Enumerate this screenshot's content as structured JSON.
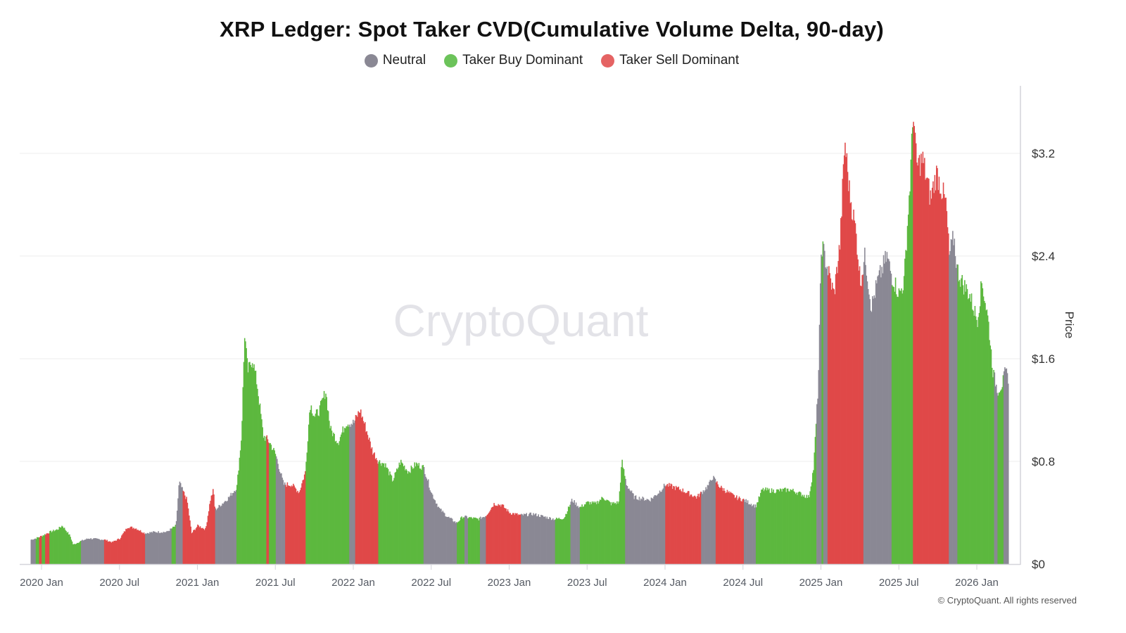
{
  "chart_data": {
    "type": "bar",
    "title": "XRP Ledger: Spot Taker CVD(Cumulative Volume Delta, 90-day)",
    "watermark": "CryptoQuant",
    "copyright": "© CryptoQuant. All rights reserved",
    "xlabel": "",
    "ylabel": "Price",
    "ylim": [
      0,
      3.6
    ],
    "y_ticks": [
      {
        "value": 0,
        "label": "$0"
      },
      {
        "value": 0.8,
        "label": "$0.8"
      },
      {
        "value": 1.6,
        "label": "$1.6"
      },
      {
        "value": 2.4,
        "label": "$2.4"
      },
      {
        "value": 3.2,
        "label": "$3.2"
      }
    ],
    "x_ticks": [
      {
        "t": 2020.0,
        "label": "2020 Jan"
      },
      {
        "t": 2020.5,
        "label": "2020 Jul"
      },
      {
        "t": 2021.0,
        "label": "2021 Jan"
      },
      {
        "t": 2021.5,
        "label": "2021 Jul"
      },
      {
        "t": 2022.0,
        "label": "2022 Jan"
      },
      {
        "t": 2022.5,
        "label": "2022 Jul"
      },
      {
        "t": 2023.0,
        "label": "2023 Jan"
      },
      {
        "t": 2023.5,
        "label": "2023 Jul"
      },
      {
        "t": 2024.0,
        "label": "2024 Jan"
      },
      {
        "t": 2024.5,
        "label": "2024 Jul"
      },
      {
        "t": 2025.0,
        "label": "2025 Jan"
      },
      {
        "t": 2025.5,
        "label": "2025 Jul"
      },
      {
        "t": 2026.0,
        "label": "2026 Jan"
      }
    ],
    "xlim": [
      2019.93,
      2026.23
    ],
    "grid": true,
    "legend_position": "top-center",
    "categories": [
      {
        "key": "neutral",
        "name": "Neutral",
        "color": "#8a8894"
      },
      {
        "key": "buy",
        "name": "Taker Buy Dominant",
        "color": "#5cb83e"
      },
      {
        "key": "sell",
        "name": "Taker Sell Dominant",
        "color": "#e04848"
      }
    ],
    "segments": [
      {
        "start": 2019.93,
        "end": 2019.96,
        "category": "neutral"
      },
      {
        "start": 2019.96,
        "end": 2019.98,
        "category": "buy"
      },
      {
        "start": 2019.98,
        "end": 2020.0,
        "category": "sell"
      },
      {
        "start": 2020.0,
        "end": 2020.02,
        "category": "buy"
      },
      {
        "start": 2020.02,
        "end": 2020.05,
        "category": "sell"
      },
      {
        "start": 2020.05,
        "end": 2020.25,
        "category": "buy"
      },
      {
        "start": 2020.25,
        "end": 2020.4,
        "category": "neutral"
      },
      {
        "start": 2020.4,
        "end": 2020.66,
        "category": "sell"
      },
      {
        "start": 2020.66,
        "end": 2020.83,
        "category": "neutral"
      },
      {
        "start": 2020.83,
        "end": 2020.86,
        "category": "buy"
      },
      {
        "start": 2020.86,
        "end": 2020.9,
        "category": "neutral"
      },
      {
        "start": 2020.9,
        "end": 2021.11,
        "category": "sell"
      },
      {
        "start": 2021.11,
        "end": 2021.25,
        "category": "neutral"
      },
      {
        "start": 2021.25,
        "end": 2021.44,
        "category": "buy"
      },
      {
        "start": 2021.44,
        "end": 2021.455,
        "category": "sell"
      },
      {
        "start": 2021.455,
        "end": 2021.5,
        "category": "buy"
      },
      {
        "start": 2021.5,
        "end": 2021.56,
        "category": "neutral"
      },
      {
        "start": 2021.56,
        "end": 2021.69,
        "category": "sell"
      },
      {
        "start": 2021.69,
        "end": 2021.97,
        "category": "buy"
      },
      {
        "start": 2021.97,
        "end": 2022.01,
        "category": "neutral"
      },
      {
        "start": 2022.01,
        "end": 2022.16,
        "category": "sell"
      },
      {
        "start": 2022.16,
        "end": 2022.45,
        "category": "buy"
      },
      {
        "start": 2022.45,
        "end": 2022.66,
        "category": "neutral"
      },
      {
        "start": 2022.66,
        "end": 2022.71,
        "category": "buy"
      },
      {
        "start": 2022.71,
        "end": 2022.73,
        "category": "neutral"
      },
      {
        "start": 2022.73,
        "end": 2022.81,
        "category": "buy"
      },
      {
        "start": 2022.81,
        "end": 2022.85,
        "category": "neutral"
      },
      {
        "start": 2022.85,
        "end": 2023.07,
        "category": "sell"
      },
      {
        "start": 2023.07,
        "end": 2023.29,
        "category": "neutral"
      },
      {
        "start": 2023.29,
        "end": 2023.39,
        "category": "buy"
      },
      {
        "start": 2023.39,
        "end": 2023.45,
        "category": "neutral"
      },
      {
        "start": 2023.45,
        "end": 2023.74,
        "category": "buy"
      },
      {
        "start": 2023.74,
        "end": 2024.0,
        "category": "neutral"
      },
      {
        "start": 2024.0,
        "end": 2024.23,
        "category": "sell"
      },
      {
        "start": 2024.23,
        "end": 2024.32,
        "category": "neutral"
      },
      {
        "start": 2024.32,
        "end": 2024.5,
        "category": "sell"
      },
      {
        "start": 2024.5,
        "end": 2024.58,
        "category": "neutral"
      },
      {
        "start": 2024.58,
        "end": 2024.97,
        "category": "buy"
      },
      {
        "start": 2024.97,
        "end": 2025.0,
        "category": "neutral"
      },
      {
        "start": 2025.0,
        "end": 2025.01,
        "category": "buy"
      },
      {
        "start": 2025.01,
        "end": 2025.04,
        "category": "neutral"
      },
      {
        "start": 2025.04,
        "end": 2025.27,
        "category": "sell"
      },
      {
        "start": 2025.27,
        "end": 2025.45,
        "category": "neutral"
      },
      {
        "start": 2025.45,
        "end": 2025.59,
        "category": "buy"
      },
      {
        "start": 2025.59,
        "end": 2025.82,
        "category": "sell"
      },
      {
        "start": 2025.82,
        "end": 2025.87,
        "category": "neutral"
      },
      {
        "start": 2025.87,
        "end": 2026.11,
        "category": "buy"
      },
      {
        "start": 2026.11,
        "end": 2026.13,
        "category": "neutral"
      },
      {
        "start": 2026.13,
        "end": 2026.17,
        "category": "buy"
      },
      {
        "start": 2026.17,
        "end": 2026.2,
        "category": "neutral"
      }
    ],
    "price_points": [
      [
        2019.93,
        0.19
      ],
      [
        2019.96,
        0.2
      ],
      [
        2020.0,
        0.22
      ],
      [
        2020.05,
        0.25
      ],
      [
        2020.1,
        0.27
      ],
      [
        2020.13,
        0.3
      ],
      [
        2020.18,
        0.22
      ],
      [
        2020.2,
        0.15
      ],
      [
        2020.25,
        0.18
      ],
      [
        2020.3,
        0.2
      ],
      [
        2020.4,
        0.19
      ],
      [
        2020.45,
        0.17
      ],
      [
        2020.5,
        0.2
      ],
      [
        2020.55,
        0.29
      ],
      [
        2020.6,
        0.28
      ],
      [
        2020.66,
        0.24
      ],
      [
        2020.72,
        0.25
      ],
      [
        2020.8,
        0.25
      ],
      [
        2020.86,
        0.3
      ],
      [
        2020.88,
        0.64
      ],
      [
        2020.9,
        0.58
      ],
      [
        2020.93,
        0.5
      ],
      [
        2020.96,
        0.24
      ],
      [
        2021.0,
        0.3
      ],
      [
        2021.05,
        0.27
      ],
      [
        2021.08,
        0.5
      ],
      [
        2021.1,
        0.58
      ],
      [
        2021.11,
        0.42
      ],
      [
        2021.2,
        0.52
      ],
      [
        2021.25,
        0.6
      ],
      [
        2021.28,
        1.0
      ],
      [
        2021.3,
        1.8
      ],
      [
        2021.32,
        1.5
      ],
      [
        2021.35,
        1.6
      ],
      [
        2021.38,
        1.4
      ],
      [
        2021.42,
        1.0
      ],
      [
        2021.46,
        0.95
      ],
      [
        2021.5,
        0.85
      ],
      [
        2021.55,
        0.62
      ],
      [
        2021.6,
        0.62
      ],
      [
        2021.65,
        0.56
      ],
      [
        2021.69,
        0.72
      ],
      [
        2021.72,
        1.25
      ],
      [
        2021.75,
        1.15
      ],
      [
        2021.78,
        1.2
      ],
      [
        2021.82,
        1.35
      ],
      [
        2021.85,
        1.05
      ],
      [
        2021.9,
        0.95
      ],
      [
        2021.95,
        1.1
      ],
      [
        2022.0,
        1.1
      ],
      [
        2022.04,
        1.2
      ],
      [
        2022.08,
        1.05
      ],
      [
        2022.12,
        0.88
      ],
      [
        2022.16,
        0.8
      ],
      [
        2022.2,
        0.78
      ],
      [
        2022.25,
        0.65
      ],
      [
        2022.3,
        0.8
      ],
      [
        2022.35,
        0.72
      ],
      [
        2022.4,
        0.78
      ],
      [
        2022.45,
        0.75
      ],
      [
        2022.5,
        0.55
      ],
      [
        2022.55,
        0.43
      ],
      [
        2022.6,
        0.37
      ],
      [
        2022.66,
        0.32
      ],
      [
        2022.7,
        0.37
      ],
      [
        2022.8,
        0.35
      ],
      [
        2022.85,
        0.38
      ],
      [
        2022.9,
        0.47
      ],
      [
        2022.95,
        0.46
      ],
      [
        2023.0,
        0.4
      ],
      [
        2023.07,
        0.38
      ],
      [
        2023.15,
        0.39
      ],
      [
        2023.25,
        0.36
      ],
      [
        2023.29,
        0.35
      ],
      [
        2023.35,
        0.36
      ],
      [
        2023.4,
        0.5
      ],
      [
        2023.45,
        0.44
      ],
      [
        2023.5,
        0.48
      ],
      [
        2023.55,
        0.47
      ],
      [
        2023.6,
        0.52
      ],
      [
        2023.65,
        0.47
      ],
      [
        2023.7,
        0.48
      ],
      [
        2023.72,
        0.8
      ],
      [
        2023.75,
        0.62
      ],
      [
        2023.8,
        0.52
      ],
      [
        2023.9,
        0.5
      ],
      [
        2023.95,
        0.55
      ],
      [
        2024.0,
        0.62
      ],
      [
        2024.05,
        0.6
      ],
      [
        2024.1,
        0.58
      ],
      [
        2024.2,
        0.52
      ],
      [
        2024.25,
        0.58
      ],
      [
        2024.28,
        0.62
      ],
      [
        2024.3,
        0.68
      ],
      [
        2024.35,
        0.6
      ],
      [
        2024.45,
        0.52
      ],
      [
        2024.5,
        0.5
      ],
      [
        2024.58,
        0.45
      ],
      [
        2024.62,
        0.58
      ],
      [
        2024.7,
        0.57
      ],
      [
        2024.8,
        0.58
      ],
      [
        2024.88,
        0.54
      ],
      [
        2024.92,
        0.52
      ],
      [
        2024.95,
        0.75
      ],
      [
        2024.98,
        1.4
      ],
      [
        2025.0,
        2.5
      ],
      [
        2025.04,
        2.3
      ],
      [
        2025.08,
        2.1
      ],
      [
        2025.12,
        2.5
      ],
      [
        2025.15,
        3.3
      ],
      [
        2025.18,
        2.9
      ],
      [
        2025.22,
        2.6
      ],
      [
        2025.25,
        2.2
      ],
      [
        2025.28,
        2.4
      ],
      [
        2025.32,
        2.0
      ],
      [
        2025.36,
        2.2
      ],
      [
        2025.42,
        2.4
      ],
      [
        2025.45,
        2.25
      ],
      [
        2025.5,
        2.1
      ],
      [
        2025.53,
        2.2
      ],
      [
        2025.57,
        3.0
      ],
      [
        2025.59,
        3.55
      ],
      [
        2025.61,
        3.1
      ],
      [
        2025.65,
        3.15
      ],
      [
        2025.7,
        2.85
      ],
      [
        2025.74,
        3.05
      ],
      [
        2025.8,
        2.8
      ],
      [
        2025.82,
        2.4
      ],
      [
        2025.85,
        2.55
      ],
      [
        2025.87,
        2.3
      ],
      [
        2025.9,
        2.2
      ],
      [
        2025.95,
        2.1
      ],
      [
        2026.0,
        1.9
      ],
      [
        2026.03,
        2.2
      ],
      [
        2026.07,
        1.9
      ],
      [
        2026.1,
        1.5
      ],
      [
        2026.13,
        1.35
      ],
      [
        2026.16,
        1.4
      ],
      [
        2026.18,
        1.5
      ],
      [
        2026.2,
        1.45
      ]
    ]
  }
}
